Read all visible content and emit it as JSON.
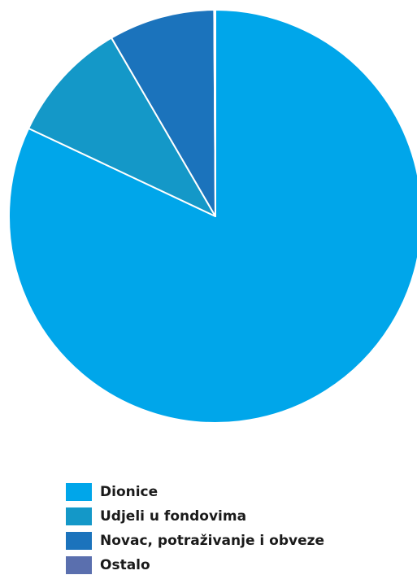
{
  "chart_data": {
    "type": "pie",
    "categories": [
      "Dionice",
      "Udjeli u fondovima",
      "Novac, potraživanje i obveze",
      "Ostalo"
    ],
    "values": [
      82.0,
      9.6,
      8.3,
      0.1
    ],
    "unit": "%",
    "colors": [
      "#00a6ea",
      "#1498c8",
      "#1b73bc",
      "#5a6fae"
    ],
    "start_angle_deg": 0,
    "direction": "clockwise",
    "slice_border_color": "#ffffff",
    "legend_position": "bottom"
  }
}
